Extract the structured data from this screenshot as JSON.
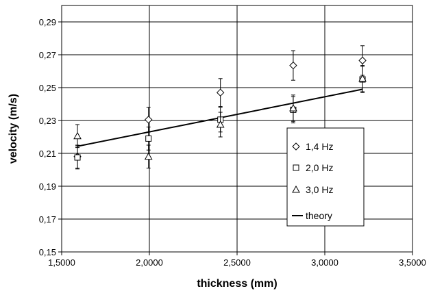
{
  "chart_data": {
    "type": "scatter",
    "title": "",
    "xlabel": "thickness (mm)",
    "ylabel": "velocity (m/s)",
    "xlim": [
      1.5,
      3.5
    ],
    "ylim": [
      0.15,
      0.3
    ],
    "xticks": [
      1.5,
      2.0,
      2.5,
      3.0,
      3.5
    ],
    "xtick_labels": [
      "1,5000",
      "2,0000",
      "2,5000",
      "3,0000",
      "3,5000"
    ],
    "yticks": [
      0.15,
      0.17,
      0.19,
      0.21,
      0.23,
      0.25,
      0.27,
      0.29
    ],
    "ytick_labels": [
      "0,15",
      "0,17",
      "0,19",
      "0,21",
      "0,23",
      "0,25",
      "0,27",
      "0,29"
    ],
    "grid": true,
    "legend_position": "right",
    "series": [
      {
        "name": "1,4 Hz",
        "marker": "diamond",
        "x": [
          1.59,
          1.995,
          2.405,
          2.82,
          3.215
        ],
        "y": [
          0.208,
          0.2305,
          0.247,
          0.2635,
          0.2665
        ],
        "err": [
          0.007,
          0.0075,
          0.0085,
          0.009,
          0.009
        ]
      },
      {
        "name": "2,0 Hz",
        "marker": "square",
        "x": [
          1.59,
          1.995,
          2.405,
          2.82,
          3.215
        ],
        "y": [
          0.2075,
          0.219,
          0.2305,
          0.2365,
          0.255
        ],
        "err": [
          0.007,
          0.007,
          0.0075,
          0.008,
          0.008
        ]
      },
      {
        "name": "3,0 Hz",
        "marker": "triangle",
        "x": [
          1.59,
          1.995,
          2.405,
          2.82,
          3.215
        ],
        "y": [
          0.2205,
          0.208,
          0.2275,
          0.2375,
          0.2555
        ],
        "err": [
          0.007,
          0.007,
          0.0075,
          0.008,
          0.008
        ]
      }
    ],
    "theory": {
      "name": "theory",
      "x": [
        1.59,
        3.215
      ],
      "y": [
        0.2143,
        0.249
      ]
    }
  }
}
